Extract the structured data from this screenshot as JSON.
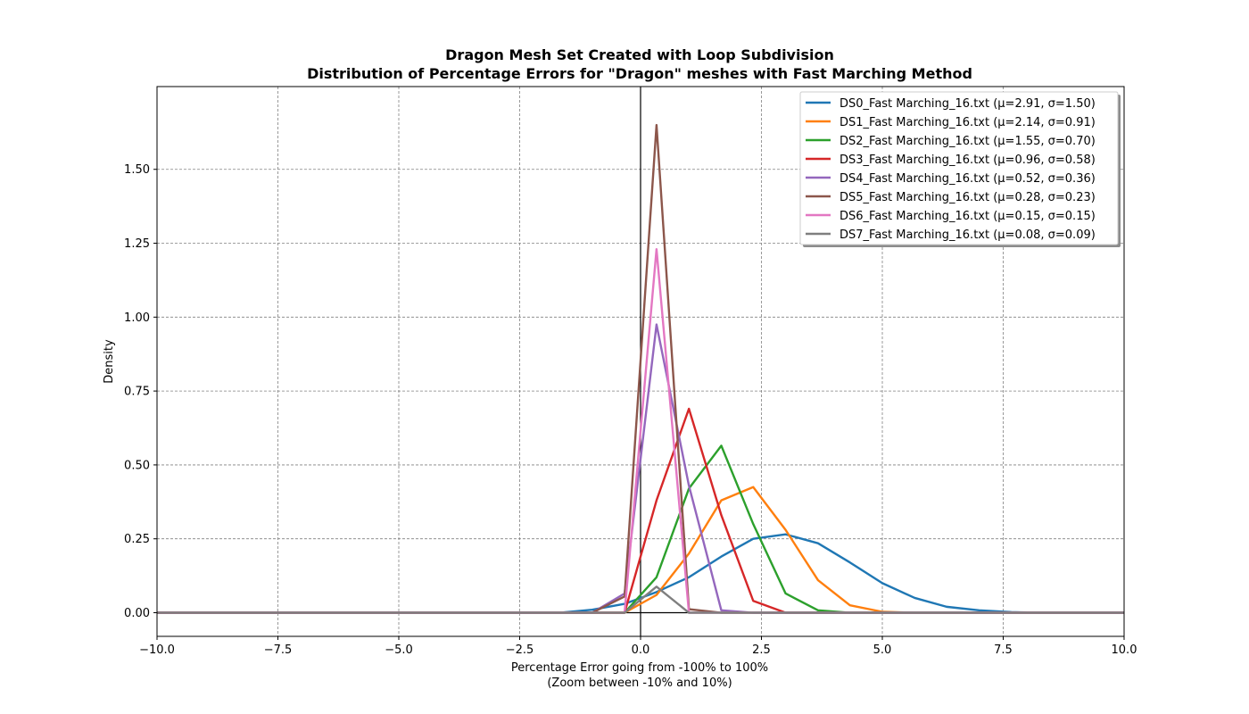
{
  "chart_data": {
    "type": "line",
    "title": "Dragon Mesh Set Created with Loop Subdivision",
    "subtitle": "Distribution of Percentage Errors for \"Dragon\" meshes with Fast Marching Method",
    "xlabel": "Percentage Error going from -100% to 100%",
    "xlabel_sub": "(Zoom between -10% and 10%)",
    "ylabel": "Density",
    "xlim": [
      -10,
      10
    ],
    "ylim": [
      -0.08,
      1.78
    ],
    "xticks": [
      -10,
      -7.5,
      -5,
      -2.5,
      0,
      2.5,
      5,
      7.5,
      10
    ],
    "xtick_labels": [
      "−10.0",
      "−7.5",
      "−5.0",
      "−2.5",
      "0.0",
      "2.5",
      "5.0",
      "7.5",
      "10.0"
    ],
    "yticks": [
      0,
      0.25,
      0.5,
      0.75,
      1.0,
      1.25,
      1.5
    ],
    "ytick_labels": [
      "0.00",
      "0.25",
      "0.50",
      "0.75",
      "1.00",
      "1.25",
      "1.50"
    ],
    "grid": true,
    "grid_style": "dashed gray",
    "reference_lines": {
      "x": 0,
      "y": 0,
      "color": "#000000"
    },
    "legend_position": "upper right",
    "series": [
      {
        "name": "DS0_Fast Marching_16.txt (μ=2.91, σ=1.50)",
        "color": "#1f77b4",
        "x": [
          -10,
          -1.67,
          -1.0,
          -0.33,
          0.33,
          1.0,
          1.67,
          2.33,
          3.0,
          3.67,
          4.33,
          5.0,
          5.67,
          6.33,
          7.0,
          7.67,
          8.33,
          10
        ],
        "y": [
          0.0,
          0.0,
          0.01,
          0.03,
          0.07,
          0.12,
          0.19,
          0.25,
          0.265,
          0.235,
          0.17,
          0.1,
          0.05,
          0.02,
          0.008,
          0.002,
          0.0,
          0.0
        ]
      },
      {
        "name": "DS1_Fast Marching_16.txt (μ=2.14, σ=0.91)",
        "color": "#ff7f0e",
        "x": [
          -10,
          -0.33,
          0.33,
          1.0,
          1.67,
          2.33,
          3.0,
          3.67,
          4.33,
          5.0,
          5.67,
          10
        ],
        "y": [
          0.0,
          0.0,
          0.06,
          0.2,
          0.38,
          0.425,
          0.28,
          0.11,
          0.025,
          0.003,
          0.0,
          0.0
        ]
      },
      {
        "name": "DS2_Fast Marching_16.txt (μ=1.55, σ=0.70)",
        "color": "#2ca02c",
        "x": [
          -10,
          -0.33,
          0.33,
          1.0,
          1.67,
          2.33,
          3.0,
          3.67,
          4.33,
          10
        ],
        "y": [
          0.0,
          0.0,
          0.12,
          0.42,
          0.565,
          0.3,
          0.065,
          0.008,
          0.0,
          0.0
        ]
      },
      {
        "name": "DS3_Fast Marching_16.txt (μ=0.96, σ=0.58)",
        "color": "#d62728",
        "x": [
          -10,
          -0.33,
          0.33,
          1.0,
          1.67,
          2.33,
          3.0,
          10
        ],
        "y": [
          0.0,
          0.0,
          0.38,
          0.69,
          0.33,
          0.04,
          0.0,
          0.0
        ]
      },
      {
        "name": "DS4_Fast Marching_16.txt (μ=0.52, σ=0.36)",
        "color": "#9467bd",
        "x": [
          -10,
          -1.0,
          -0.33,
          0.33,
          1.0,
          1.67,
          2.33,
          10
        ],
        "y": [
          0.0,
          0.0,
          0.065,
          0.975,
          0.43,
          0.008,
          0.0,
          0.0
        ]
      },
      {
        "name": "DS5_Fast Marching_16.txt (μ=0.28, σ=0.23)",
        "color": "#8c564b",
        "x": [
          -10,
          -1.0,
          -0.33,
          0.33,
          1.0,
          1.67,
          10
        ],
        "y": [
          0.0,
          0.0,
          0.055,
          1.65,
          0.012,
          0.0,
          0.0
        ]
      },
      {
        "name": "DS6_Fast Marching_16.txt (μ=0.15, σ=0.15)",
        "color": "#e377c2",
        "x": [
          -10,
          -0.33,
          0.33,
          1.0,
          10
        ],
        "y": [
          0.0,
          0.0,
          1.23,
          0.0,
          0.0
        ]
      },
      {
        "name": "DS7_Fast Marching_16.txt (μ=0.08, σ=0.09)",
        "color": "#7f7f7f",
        "x": [
          -10,
          -0.33,
          0.33,
          1.0,
          10
        ],
        "y": [
          0.0,
          0.0,
          0.088,
          0.0,
          0.0
        ]
      }
    ]
  }
}
